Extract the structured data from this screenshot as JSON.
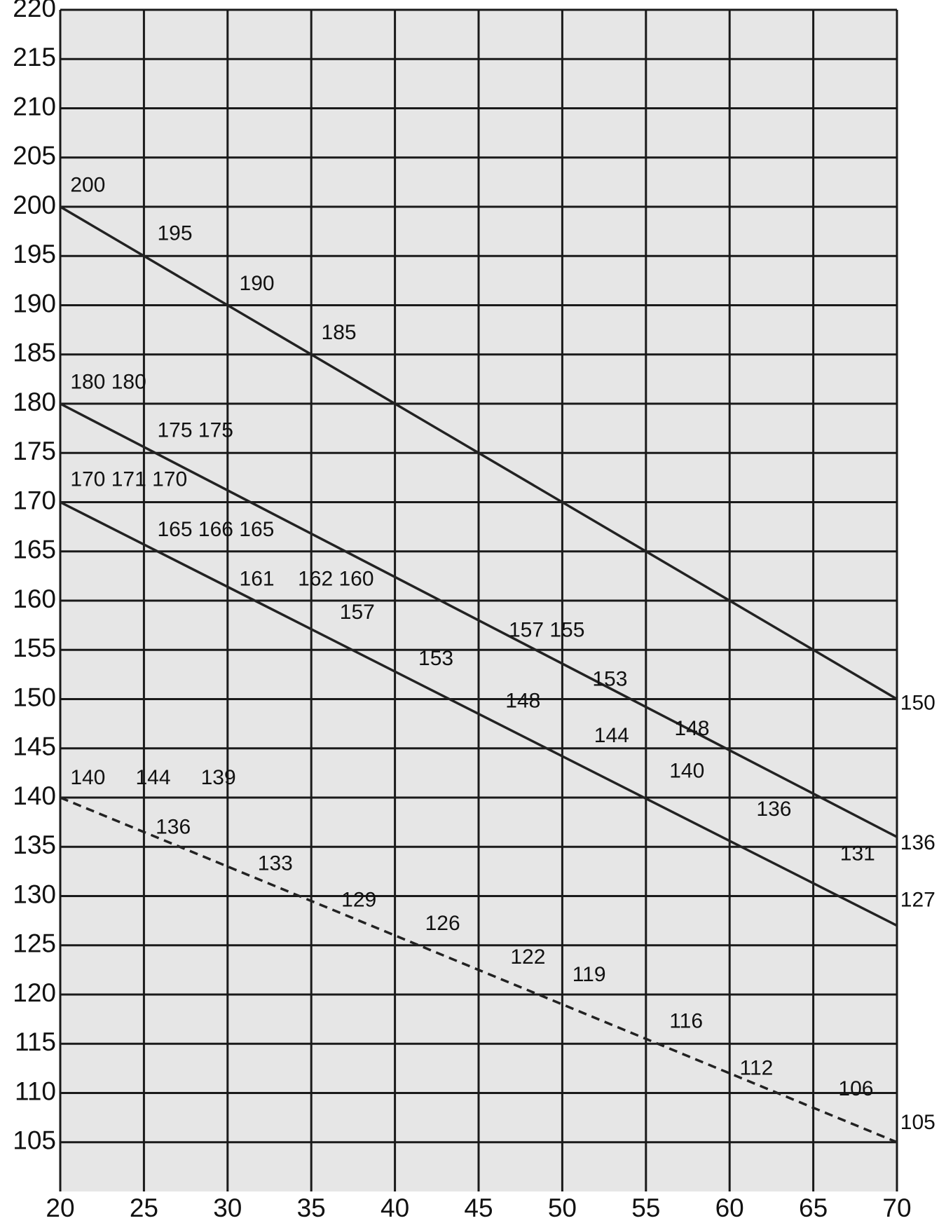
{
  "chart_data": {
    "type": "line",
    "xlim": [
      20,
      70
    ],
    "xticks": [
      20,
      25,
      30,
      35,
      40,
      45,
      50,
      55,
      60,
      65,
      70
    ],
    "ylim": [
      100,
      220
    ],
    "yticks": [
      105,
      110,
      115,
      120,
      125,
      130,
      135,
      140,
      145,
      150,
      155,
      160,
      165,
      170,
      175,
      180,
      185,
      190,
      195,
      200,
      205,
      210,
      215,
      220
    ],
    "grid": true,
    "series": [
      {
        "x": [
          20,
          70
        ],
        "values": [
          200,
          150
        ],
        "color": "#222222",
        "dash": false
      },
      {
        "x": [
          20,
          70
        ],
        "values": [
          180,
          136
        ],
        "color": "#222222",
        "dash": false
      },
      {
        "x": [
          20,
          70
        ],
        "values": [
          170,
          127
        ],
        "color": "#222222",
        "dash": false
      },
      {
        "x": [
          20,
          70
        ],
        "values": [
          140,
          105
        ],
        "color": "#222222",
        "dash": true
      }
    ],
    "annotations": [
      {
        "text": "200",
        "x": 20.6,
        "y": 202.1
      },
      {
        "text": "195",
        "x": 25.8,
        "y": 197.2
      },
      {
        "text": "190",
        "x": 30.7,
        "y": 192.1
      },
      {
        "text": "185",
        "x": 35.6,
        "y": 187.1
      },
      {
        "text": "180 180",
        "x": 20.6,
        "y": 182.1
      },
      {
        "text": "175 175",
        "x": 25.8,
        "y": 177.2
      },
      {
        "text": "170 171 170",
        "x": 20.6,
        "y": 172.2
      },
      {
        "text": "165 166 165",
        "x": 25.8,
        "y": 167.1
      },
      {
        "text": "161",
        "x": 30.7,
        "y": 162.1
      },
      {
        "text": "162 160",
        "x": 34.2,
        "y": 162.1
      },
      {
        "text": "157",
        "x": 36.7,
        "y": 158.7
      },
      {
        "text": "153",
        "x": 41.4,
        "y": 154
      },
      {
        "text": "157 155",
        "x": 46.8,
        "y": 156.9
      },
      {
        "text": "153",
        "x": 51.8,
        "y": 151.9
      },
      {
        "text": "148",
        "x": 46.6,
        "y": 149.7
      },
      {
        "text": "148",
        "x": 56.7,
        "y": 146.9
      },
      {
        "text": "144",
        "x": 51.9,
        "y": 146.2
      },
      {
        "text": "140",
        "x": 56.4,
        "y": 142.6
      },
      {
        "text": "136",
        "x": 61.6,
        "y": 138.7
      },
      {
        "text": "131",
        "x": 66.6,
        "y": 134.2
      },
      {
        "text": "150",
        "x": 70.2,
        "y": 149.5
      },
      {
        "text": "136",
        "x": 70.2,
        "y": 135.3
      },
      {
        "text": "127",
        "x": 70.2,
        "y": 129.5
      },
      {
        "text": "105",
        "x": 70.2,
        "y": 106.9
      },
      {
        "text": "140",
        "x": 20.6,
        "y": 141.9
      },
      {
        "text": "144",
        "x": 24.5,
        "y": 141.9
      },
      {
        "text": "139",
        "x": 28.4,
        "y": 141.9
      },
      {
        "text": "136",
        "x": 25.7,
        "y": 136.9
      },
      {
        "text": "133",
        "x": 31.8,
        "y": 133.2
      },
      {
        "text": "129",
        "x": 36.8,
        "y": 129.5
      },
      {
        "text": "126",
        "x": 41.8,
        "y": 127.1
      },
      {
        "text": "122",
        "x": 46.9,
        "y": 123.7
      },
      {
        "text": "119",
        "x": 50.6,
        "y": 121.9
      },
      {
        "text": "116",
        "x": 56.4,
        "y": 117.2
      },
      {
        "text": "112",
        "x": 60.6,
        "y": 112.4
      },
      {
        "text": "106",
        "x": 66.5,
        "y": 110.3
      }
    ]
  }
}
